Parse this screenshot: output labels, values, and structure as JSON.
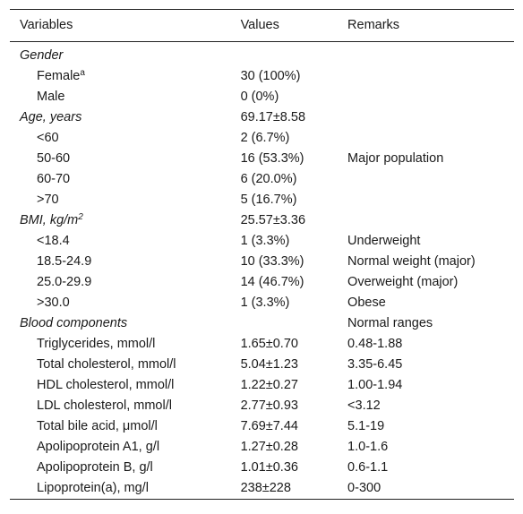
{
  "table": {
    "headers": [
      "Variables",
      "Values",
      "Remarks"
    ],
    "rows": [
      {
        "variable": "Gender",
        "value": "",
        "remark": "",
        "group": true
      },
      {
        "variable": "Female",
        "sup": "a",
        "value": "30 (100%)",
        "remark": "",
        "group": false
      },
      {
        "variable": "Male",
        "value": "0 (0%)",
        "remark": "",
        "group": false
      },
      {
        "variable": "Age, years",
        "value": "69.17±8.58",
        "remark": "",
        "group": true
      },
      {
        "variable": "<60",
        "value": "2 (6.7%)",
        "remark": "",
        "group": false
      },
      {
        "variable": "50-60",
        "value": "16 (53.3%)",
        "remark": "Major population",
        "group": false
      },
      {
        "variable": "60-70",
        "value": "6 (20.0%)",
        "remark": "",
        "group": false
      },
      {
        "variable": ">70",
        "value": "5 (16.7%)",
        "remark": "",
        "group": false
      },
      {
        "variable": "BMI, kg/m",
        "sup": "2",
        "value": "25.57±3.36",
        "remark": "",
        "group": true
      },
      {
        "variable": "<18.4",
        "value": "1 (3.3%)",
        "remark": "Underweight",
        "group": false
      },
      {
        "variable": "18.5-24.9",
        "value": "10 (33.3%)",
        "remark": "Normal weight (major)",
        "group": false
      },
      {
        "variable": "25.0-29.9",
        "value": "14 (46.7%)",
        "remark": "Overweight (major)",
        "group": false
      },
      {
        "variable": ">30.0",
        "value": "1 (3.3%)",
        "remark": "Obese",
        "group": false
      },
      {
        "variable": "Blood components",
        "value": "",
        "remark": "Normal ranges",
        "group": true
      },
      {
        "variable": "Triglycerides, mmol/l",
        "value": "1.65±0.70",
        "remark": "0.48-1.88",
        "group": false
      },
      {
        "variable": "Total cholesterol, mmol/l",
        "value": "5.04±1.23",
        "remark": "3.35-6.45",
        "group": false
      },
      {
        "variable": "HDL cholesterol, mmol/l",
        "value": "1.22±0.27",
        "remark": "1.00-1.94",
        "group": false
      },
      {
        "variable": "LDL cholesterol, mmol/l",
        "value": "2.77±0.93",
        "remark": "<3.12",
        "group": false
      },
      {
        "variable": "Total bile acid, μmol/l",
        "value": "7.69±7.44",
        "remark": "5.1-19",
        "group": false
      },
      {
        "variable": "Apolipoprotein A1, g/l",
        "value": "1.27±0.28",
        "remark": "1.0-1.6",
        "group": false
      },
      {
        "variable": "Apolipoprotein B, g/l",
        "value": "1.01±0.36",
        "remark": "0.6-1.1",
        "group": false
      },
      {
        "variable": "Lipoprotein(a), mg/l",
        "value": "238±228",
        "remark": "0-300",
        "group": false
      }
    ]
  }
}
